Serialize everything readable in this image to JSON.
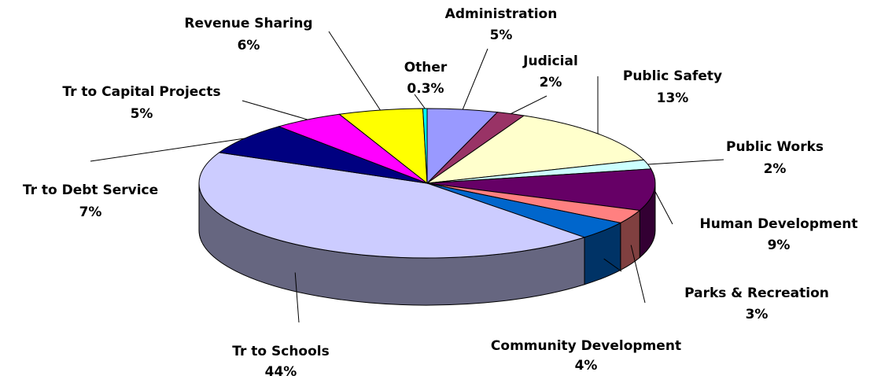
{
  "chart_data": {
    "type": "pie",
    "categories": [
      "Administration",
      "Judicial",
      "Public Safety",
      "Public Works",
      "Human Development",
      "Parks & Recreation",
      "Community Development",
      "Tr to Schools",
      "Tr to Debt Service",
      "Tr to Capital Projects",
      "Revenue Sharing",
      "Other"
    ],
    "values": [
      5,
      2,
      13,
      2,
      9,
      3,
      4,
      44,
      7,
      5,
      6,
      0.3
    ],
    "value_labels": [
      "5%",
      "2%",
      "13%",
      "2%",
      "9%",
      "3%",
      "4%",
      "44%",
      "7%",
      "5%",
      "6%",
      "0.3%"
    ],
    "colors": [
      "#9999ff",
      "#993366",
      "#ffffcc",
      "#ccffff",
      "#660066",
      "#ff8080",
      "#0066cc",
      "#ccccff",
      "#000080",
      "#ff00ff",
      "#ffff00",
      "#00ffff"
    ]
  }
}
